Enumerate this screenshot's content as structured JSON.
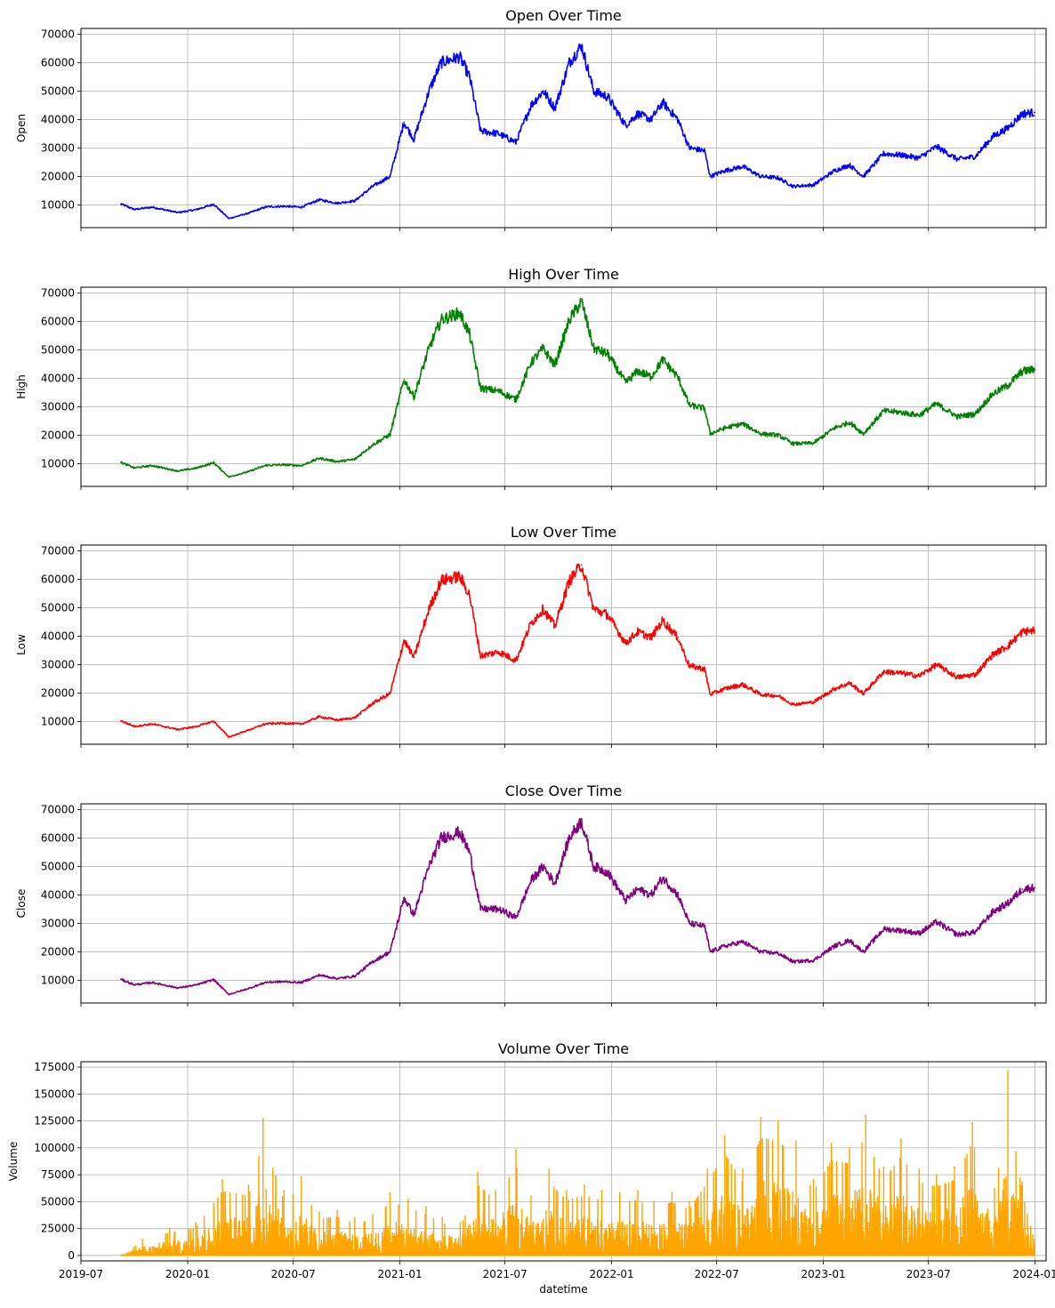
{
  "chart_data": [
    {
      "type": "line",
      "title": "Open Over Time",
      "ylabel": "Open",
      "xlabel": "",
      "color": "#0000ff",
      "ylim": [
        2000,
        72000
      ],
      "yticks": [
        10000,
        20000,
        30000,
        40000,
        50000,
        60000,
        70000
      ],
      "grid": true,
      "series": [
        {
          "values_note": "",
          "x": [
            "2019-09-08",
            "2019-10-01",
            "2019-11-01",
            "2019-12-15",
            "2020-01-15",
            "2020-02-15",
            "2020-03-12",
            "2020-04-15",
            "2020-05-15",
            "2020-06-15",
            "2020-07-15",
            "2020-08-15",
            "2020-09-15",
            "2020-10-15",
            "2020-11-15",
            "2020-12-15",
            "2021-01-08",
            "2021-01-25",
            "2021-02-20",
            "2021-03-13",
            "2021-04-14",
            "2021-05-01",
            "2021-05-20",
            "2021-06-20",
            "2021-07-20",
            "2021-08-15",
            "2021-09-05",
            "2021-09-25",
            "2021-10-20",
            "2021-11-10",
            "2021-12-01",
            "2021-12-25",
            "2022-01-25",
            "2022-02-15",
            "2022-03-10",
            "2022-03-30",
            "2022-04-25",
            "2022-05-15",
            "2022-06-10",
            "2022-06-20",
            "2022-07-15",
            "2022-08-15",
            "2022-09-15",
            "2022-10-15",
            "2022-11-10",
            "2022-12-15",
            "2023-01-20",
            "2023-02-15",
            "2023-03-11",
            "2023-04-15",
            "2023-05-15",
            "2023-06-15",
            "2023-07-15",
            "2023-08-20",
            "2023-09-20",
            "2023-10-20",
            "2023-11-15",
            "2023-12-10",
            "2023-12-31"
          ],
          "values": [
            10300,
            8400,
            9200,
            7300,
            8300,
            10200,
            5200,
            7100,
            9300,
            9500,
            9200,
            11800,
            10600,
            11400,
            16500,
            20000,
            39000,
            33000,
            50000,
            60000,
            62000,
            55000,
            36000,
            35000,
            32000,
            45000,
            50000,
            44000,
            60000,
            66000,
            50000,
            48000,
            38000,
            42000,
            40000,
            46000,
            40000,
            30000,
            29000,
            20000,
            22000,
            23500,
            20000,
            19500,
            16500,
            17000,
            22000,
            24000,
            20000,
            28000,
            27500,
            26500,
            30500,
            26000,
            27000,
            34000,
            37000,
            42000,
            42500
          ]
        }
      ]
    },
    {
      "type": "line",
      "title": "High Over Time",
      "ylabel": "High",
      "xlabel": "",
      "color": "#008000",
      "ylim": [
        2000,
        72000
      ],
      "yticks": [
        10000,
        20000,
        30000,
        40000,
        50000,
        60000,
        70000
      ],
      "grid": true,
      "series": [
        {
          "values_note": "",
          "x": [
            "2019-09-08",
            "2019-10-01",
            "2019-11-01",
            "2019-12-15",
            "2020-01-15",
            "2020-02-15",
            "2020-03-12",
            "2020-04-15",
            "2020-05-15",
            "2020-06-15",
            "2020-07-15",
            "2020-08-15",
            "2020-09-15",
            "2020-10-15",
            "2020-11-15",
            "2020-12-15",
            "2021-01-08",
            "2021-01-25",
            "2021-02-20",
            "2021-03-13",
            "2021-04-14",
            "2021-05-01",
            "2021-05-20",
            "2021-06-20",
            "2021-07-20",
            "2021-08-15",
            "2021-09-05",
            "2021-09-25",
            "2021-10-20",
            "2021-11-10",
            "2021-12-01",
            "2021-12-25",
            "2022-01-25",
            "2022-02-15",
            "2022-03-10",
            "2022-03-30",
            "2022-04-25",
            "2022-05-15",
            "2022-06-10",
            "2022-06-20",
            "2022-07-15",
            "2022-08-15",
            "2022-09-15",
            "2022-10-15",
            "2022-11-10",
            "2022-12-15",
            "2023-01-20",
            "2023-02-15",
            "2023-03-11",
            "2023-04-15",
            "2023-05-15",
            "2023-06-15",
            "2023-07-15",
            "2023-08-20",
            "2023-09-20",
            "2023-10-20",
            "2023-11-15",
            "2023-12-10",
            "2023-12-31"
          ],
          "values": [
            10400,
            8500,
            9300,
            7400,
            8400,
            10300,
            5300,
            7200,
            9400,
            9600,
            9300,
            11900,
            10700,
            11500,
            16600,
            20200,
            39500,
            33500,
            50500,
            60500,
            63000,
            55500,
            36500,
            35500,
            32500,
            45500,
            50500,
            44500,
            60500,
            67000,
            50500,
            48500,
            38500,
            42500,
            40500,
            46500,
            40500,
            30500,
            29500,
            20500,
            22500,
            24000,
            20500,
            20000,
            17000,
            17200,
            22500,
            24500,
            20500,
            28500,
            28000,
            27000,
            31000,
            26500,
            27500,
            34500,
            37500,
            42500,
            43000
          ]
        }
      ]
    },
    {
      "type": "line",
      "title": "Low Over Time",
      "ylabel": "Low",
      "xlabel": "",
      "color": "#ff0000",
      "ylim": [
        2000,
        72000
      ],
      "yticks": [
        10000,
        20000,
        30000,
        40000,
        50000,
        60000,
        70000
      ],
      "grid": true,
      "series": [
        {
          "values_note": "",
          "x": [
            "2019-09-08",
            "2019-10-01",
            "2019-11-01",
            "2019-12-15",
            "2020-01-15",
            "2020-02-15",
            "2020-03-12",
            "2020-04-15",
            "2020-05-15",
            "2020-06-15",
            "2020-07-15",
            "2020-08-15",
            "2020-09-15",
            "2020-10-15",
            "2020-11-15",
            "2020-12-15",
            "2021-01-08",
            "2021-01-25",
            "2021-02-20",
            "2021-03-13",
            "2021-04-14",
            "2021-05-01",
            "2021-05-20",
            "2021-06-20",
            "2021-07-20",
            "2021-08-15",
            "2021-09-05",
            "2021-09-25",
            "2021-10-20",
            "2021-11-10",
            "2021-12-01",
            "2021-12-25",
            "2022-01-25",
            "2022-02-15",
            "2022-03-10",
            "2022-03-30",
            "2022-04-25",
            "2022-05-15",
            "2022-06-10",
            "2022-06-20",
            "2022-07-15",
            "2022-08-15",
            "2022-09-15",
            "2022-10-15",
            "2022-11-10",
            "2022-12-15",
            "2023-01-20",
            "2023-02-15",
            "2023-03-11",
            "2023-04-15",
            "2023-05-15",
            "2023-06-15",
            "2023-07-15",
            "2023-08-20",
            "2023-09-20",
            "2023-10-20",
            "2023-11-15",
            "2023-12-10",
            "2023-12-31"
          ],
          "values": [
            10200,
            8300,
            9100,
            7200,
            8200,
            10100,
            4500,
            7000,
            9200,
            9400,
            9100,
            11700,
            10500,
            11300,
            16400,
            19800,
            38500,
            32500,
            49500,
            59500,
            61000,
            54500,
            33000,
            34500,
            31500,
            44500,
            49500,
            43500,
            59500,
            65000,
            49500,
            47500,
            37500,
            41500,
            39500,
            45500,
            39500,
            29500,
            28500,
            19500,
            21500,
            23000,
            19500,
            19000,
            16000,
            16800,
            21500,
            23500,
            19800,
            27500,
            27000,
            26000,
            30000,
            25500,
            26500,
            33500,
            36500,
            41500,
            42000
          ]
        }
      ]
    },
    {
      "type": "line",
      "title": "Close Over Time",
      "ylabel": "Close",
      "xlabel": "",
      "color": "#800080",
      "ylim": [
        2000,
        72000
      ],
      "yticks": [
        10000,
        20000,
        30000,
        40000,
        50000,
        60000,
        70000
      ],
      "grid": true,
      "series": [
        {
          "values_note": "",
          "x": [
            "2019-09-08",
            "2019-10-01",
            "2019-11-01",
            "2019-12-15",
            "2020-01-15",
            "2020-02-15",
            "2020-03-12",
            "2020-04-15",
            "2020-05-15",
            "2020-06-15",
            "2020-07-15",
            "2020-08-15",
            "2020-09-15",
            "2020-10-15",
            "2020-11-15",
            "2020-12-15",
            "2021-01-08",
            "2021-01-25",
            "2021-02-20",
            "2021-03-13",
            "2021-04-14",
            "2021-05-01",
            "2021-05-20",
            "2021-06-20",
            "2021-07-20",
            "2021-08-15",
            "2021-09-05",
            "2021-09-25",
            "2021-10-20",
            "2021-11-10",
            "2021-12-01",
            "2021-12-25",
            "2022-01-25",
            "2022-02-15",
            "2022-03-10",
            "2022-03-30",
            "2022-04-25",
            "2022-05-15",
            "2022-06-10",
            "2022-06-20",
            "2022-07-15",
            "2022-08-15",
            "2022-09-15",
            "2022-10-15",
            "2022-11-10",
            "2022-12-15",
            "2023-01-20",
            "2023-02-15",
            "2023-03-11",
            "2023-04-15",
            "2023-05-15",
            "2023-06-15",
            "2023-07-15",
            "2023-08-20",
            "2023-09-20",
            "2023-10-20",
            "2023-11-15",
            "2023-12-10",
            "2023-12-31"
          ],
          "values": [
            10300,
            8400,
            9200,
            7300,
            8300,
            10200,
            5000,
            7100,
            9300,
            9500,
            9200,
            11800,
            10600,
            11400,
            16500,
            20000,
            39000,
            33000,
            50000,
            60000,
            62000,
            55000,
            35000,
            35000,
            32000,
            45000,
            50000,
            44000,
            60000,
            66000,
            50000,
            48000,
            38000,
            42000,
            40000,
            46000,
            40000,
            30000,
            29000,
            20000,
            22000,
            23500,
            20000,
            19500,
            16500,
            17000,
            22000,
            24000,
            20000,
            28000,
            27500,
            26500,
            30500,
            26000,
            27000,
            34000,
            37000,
            42000,
            42500
          ]
        }
      ]
    },
    {
      "type": "line",
      "title": "Volume Over Time",
      "ylabel": "Volume",
      "xlabel": "datetime",
      "color": "#ffa500",
      "ylim": [
        -5000,
        180000
      ],
      "yticks": [
        0,
        25000,
        50000,
        75000,
        100000,
        125000,
        150000,
        175000
      ],
      "grid": true,
      "series": [
        {
          "values_note": "",
          "x": [
            "2019-09-08",
            "2019-10-15",
            "2019-12-01",
            "2020-01-15",
            "2020-03-01",
            "2020-04-15",
            "2020-05-10",
            "2020-06-15",
            "2020-07-15",
            "2020-08-15",
            "2020-09-15",
            "2020-10-15",
            "2020-11-15",
            "2020-12-15",
            "2021-01-15",
            "2021-02-15",
            "2021-03-15",
            "2021-04-15",
            "2021-05-15",
            "2021-06-15",
            "2021-07-20",
            "2021-08-15",
            "2021-09-15",
            "2021-10-15",
            "2021-11-15",
            "2021-12-15",
            "2022-01-15",
            "2022-02-15",
            "2022-03-15",
            "2022-04-15",
            "2022-05-15",
            "2022-06-15",
            "2022-07-15",
            "2022-08-15",
            "2022-09-15",
            "2022-10-15",
            "2022-11-15",
            "2022-12-15",
            "2023-01-15",
            "2023-02-15",
            "2023-03-15",
            "2023-04-15",
            "2023-05-15",
            "2023-06-15",
            "2023-07-15",
            "2023-08-15",
            "2023-09-15",
            "2023-10-23",
            "2023-11-15",
            "2023-12-10",
            "2023-12-31"
          ],
          "values": [
            500,
            15000,
            25000,
            30000,
            70000,
            65000,
            127000,
            60000,
            73000,
            40000,
            42000,
            35000,
            38000,
            58000,
            52000,
            45000,
            35000,
            30000,
            77000,
            60000,
            98000,
            55000,
            80000,
            60000,
            65000,
            60000,
            58000,
            60000,
            50000,
            58000,
            50000,
            80000,
            111000,
            80000,
            128000,
            125000,
            106000,
            70000,
            104000,
            100000,
            130000,
            82000,
            108000,
            80000,
            75000,
            82000,
            123000,
            62000,
            171000,
            68000,
            15000
          ]
        }
      ],
      "xticks": [
        "2019-07",
        "2020-01",
        "2020-07",
        "2021-01",
        "2021-07",
        "2022-01",
        "2022-07",
        "2023-01",
        "2023-07",
        "2024-01"
      ]
    }
  ]
}
